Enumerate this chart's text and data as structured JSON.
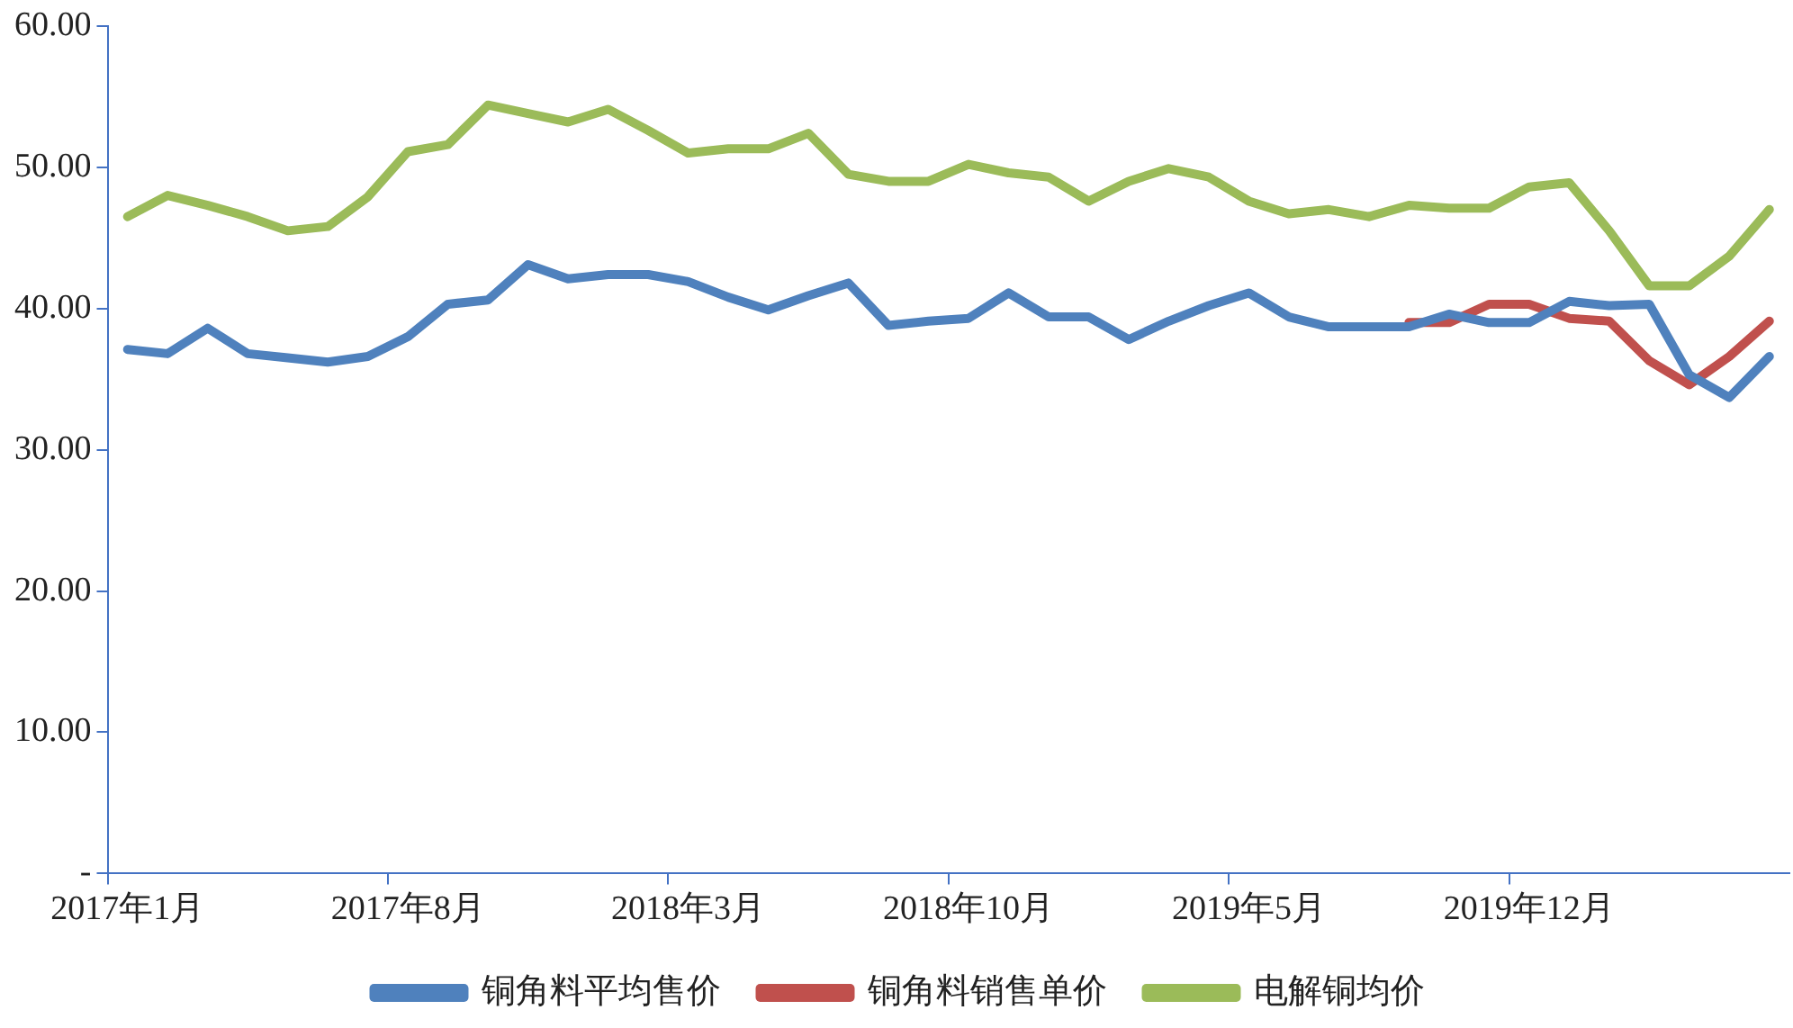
{
  "chart_data": {
    "type": "line",
    "categories": [
      "2017年1月",
      null,
      null,
      null,
      null,
      null,
      null,
      "2017年8月",
      null,
      null,
      null,
      null,
      null,
      null,
      "2018年3月",
      null,
      null,
      null,
      null,
      null,
      null,
      "2018年10月",
      null,
      null,
      null,
      null,
      null,
      null,
      "2019年5月",
      null,
      null,
      null,
      null,
      null,
      null,
      "2019年12月",
      null,
      null,
      null,
      null,
      null,
      null
    ],
    "series": [
      {
        "name": "铜角料平均售价",
        "color": "#4f81bd",
        "values": [
          37.1,
          36.8,
          38.6,
          36.8,
          36.5,
          36.2,
          36.6,
          38.0,
          40.3,
          40.6,
          43.1,
          42.1,
          42.4,
          42.4,
          41.9,
          40.8,
          39.9,
          40.9,
          41.8,
          38.8,
          39.1,
          39.3,
          41.1,
          39.4,
          39.4,
          37.8,
          39.1,
          40.2,
          41.1,
          39.4,
          38.7,
          38.7,
          38.7,
          39.6,
          39.0,
          39.0,
          40.5,
          40.2,
          40.3,
          35.3,
          33.7,
          36.6
        ]
      },
      {
        "name": "铜角料销售单价",
        "color": "#c0504d",
        "values": [
          null,
          null,
          null,
          null,
          null,
          null,
          null,
          null,
          null,
          null,
          null,
          null,
          null,
          null,
          null,
          null,
          null,
          null,
          null,
          null,
          null,
          null,
          null,
          null,
          null,
          null,
          null,
          null,
          null,
          null,
          null,
          null,
          39.0,
          39.0,
          40.3,
          40.3,
          39.3,
          39.1,
          36.3,
          34.6,
          36.6,
          39.1
        ]
      },
      {
        "name": "电解铜均价",
        "color": "#9bbb59",
        "values": [
          46.5,
          48.0,
          47.3,
          46.5,
          45.5,
          45.8,
          47.9,
          51.1,
          51.6,
          54.4,
          53.8,
          53.2,
          54.1,
          52.6,
          51.0,
          51.3,
          51.3,
          52.4,
          49.5,
          49.0,
          49.0,
          50.2,
          49.6,
          49.3,
          47.6,
          49.0,
          49.9,
          49.3,
          47.6,
          46.7,
          47.0,
          46.5,
          47.3,
          47.1,
          47.1,
          48.6,
          48.9,
          45.5,
          41.6,
          41.6,
          43.7,
          47.0
        ]
      }
    ],
    "ylim": [
      0,
      60
    ],
    "yticks": [
      {
        "value": 0,
        "label": "-"
      },
      {
        "value": 10,
        "label": "10.00"
      },
      {
        "value": 20,
        "label": "20.00"
      },
      {
        "value": 30,
        "label": "30.00"
      },
      {
        "value": 40,
        "label": "40.00"
      },
      {
        "value": 50,
        "label": "50.00"
      },
      {
        "value": 60,
        "label": "60.00"
      }
    ],
    "grid": false,
    "legend": "bottom",
    "marker": "none",
    "line_style": "solid"
  }
}
